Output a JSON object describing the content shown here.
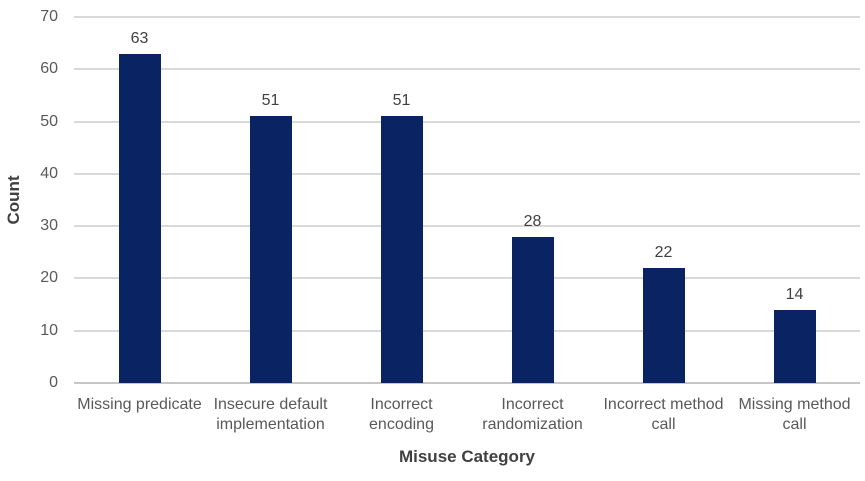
{
  "chart_data": {
    "type": "bar",
    "title": "",
    "xlabel": "Misuse Category",
    "ylabel": "Count",
    "categories": [
      "Missing predicate",
      "Insecure default implementation",
      "Incorrect encoding",
      "Incorrect randomization",
      "Incorrect method call",
      "Missing method call"
    ],
    "values": [
      63,
      51,
      51,
      28,
      22,
      14
    ],
    "data_labels": [
      "63",
      "51",
      "51",
      "28",
      "22",
      "14"
    ],
    "yticks": [
      0,
      10,
      20,
      30,
      40,
      50,
      60,
      70
    ],
    "ylim": [
      0,
      70
    ],
    "grid": true,
    "legend": "none",
    "colors": {
      "bar": "#0a2463",
      "gridline": "#d9d9d9",
      "axis_line": "#c6c6c6",
      "tick_text": "#595959",
      "category_text": "#595959",
      "data_label_text": "#404040",
      "axis_title_text": "#404040",
      "background": "#ffffff"
    }
  }
}
